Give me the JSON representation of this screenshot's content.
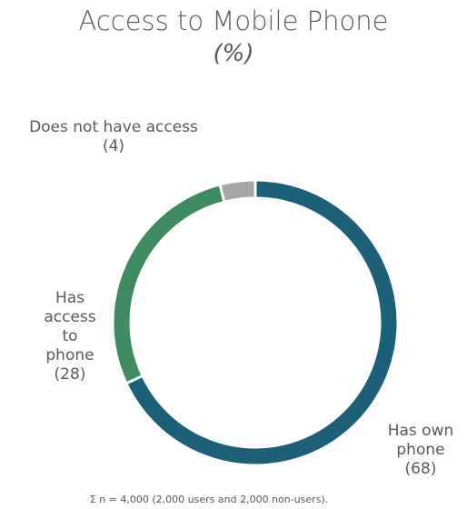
{
  "chart_data": {
    "type": "pie",
    "variant": "donut",
    "title": "Access to Mobile Phone",
    "subtitle": "(%)",
    "slices": [
      {
        "name": "Has own phone",
        "label_lines": [
          "Has own",
          "phone",
          "(68)"
        ],
        "value": 68,
        "color": "#1a6078"
      },
      {
        "name": "Has access to phone",
        "label_lines": [
          "Has",
          "access",
          "to",
          "phone",
          "(28)"
        ],
        "value": 28,
        "color": "#3d8c5f"
      },
      {
        "name": "Does not have access",
        "label_lines": [
          "Does not have access",
          "(4)"
        ],
        "value": 4,
        "color": "#a6a6a6"
      }
    ],
    "start": "top",
    "direction": "clockwise"
  },
  "footnote": "Σ n = 4,000 (2,000 users and 2,000 non-users)."
}
